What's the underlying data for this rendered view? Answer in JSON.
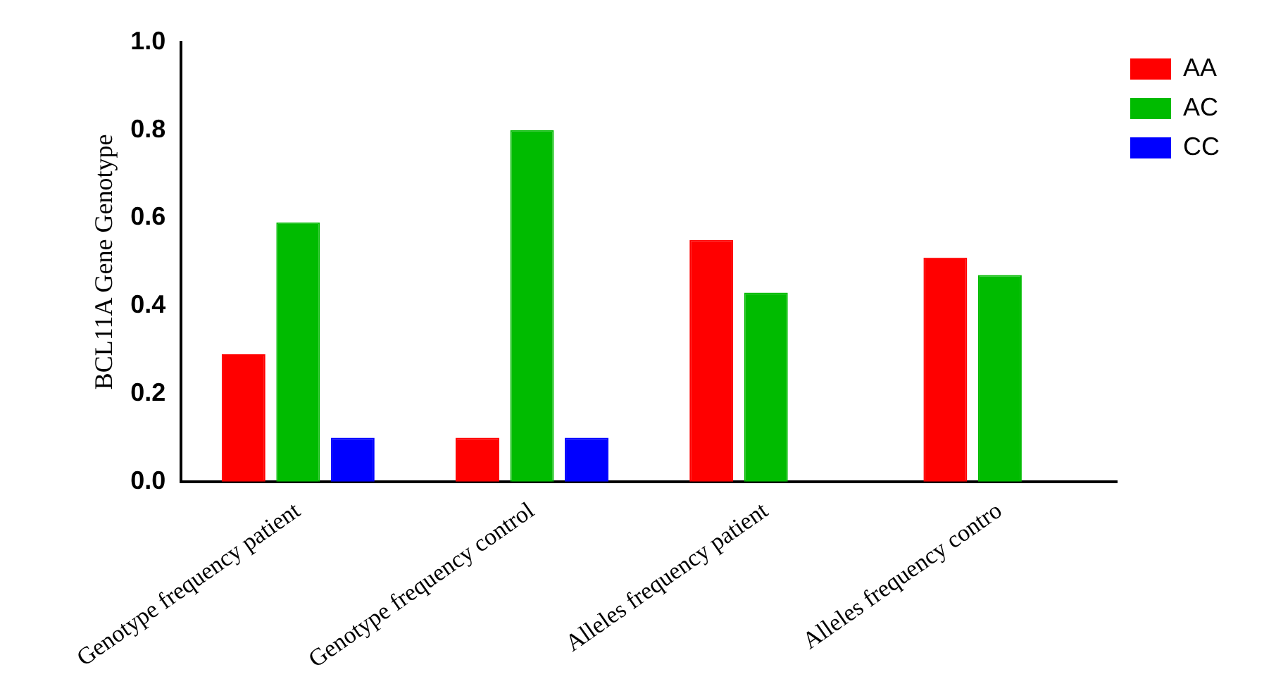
{
  "chart_data": {
    "type": "bar",
    "ylabel": "BCL11A Gene Genotype",
    "categories": [
      "Genotype frequency patient",
      "Genotype frequency control",
      "Alleles frequency patient",
      "Alleles frequency contro"
    ],
    "series": [
      {
        "name": "AA",
        "color": "#ff0000",
        "values": [
          0.29,
          0.1,
          0.55,
          0.51
        ]
      },
      {
        "name": "AC",
        "color": "#00bb00",
        "values": [
          0.59,
          0.8,
          0.43,
          0.47
        ]
      },
      {
        "name": "CC",
        "color": "#0000ff",
        "values": [
          0.1,
          0.1,
          null,
          null
        ]
      }
    ],
    "ylim": [
      0,
      1
    ],
    "yticks": [
      {
        "value": 0,
        "label": "0.0"
      },
      {
        "value": 0.2,
        "label": "0.2"
      },
      {
        "value": 0.4,
        "label": "0.4"
      },
      {
        "value": 0.6,
        "label": "0.6"
      },
      {
        "value": 0.8,
        "label": "0.8"
      },
      {
        "value": 1,
        "label": "1.0"
      }
    ],
    "grid": false,
    "legend": "top right"
  }
}
